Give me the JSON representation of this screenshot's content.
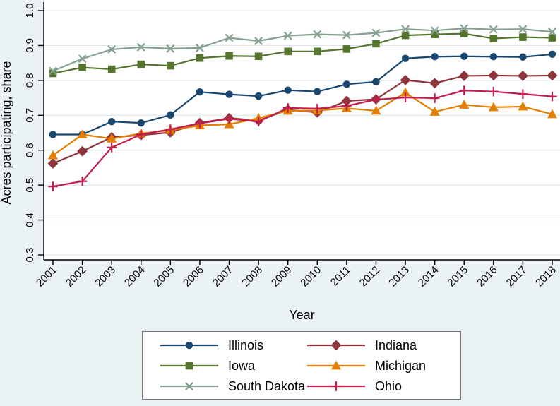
{
  "figure": {
    "background": "#eaf2f3",
    "plot_background": "#ffffff",
    "gridline_color": "#dde9ec",
    "axis_color": "#000000",
    "text_color": "#000000",
    "legend_border_color": "#767676"
  },
  "chart_data": {
    "type": "line",
    "title": "",
    "xlabel": "Year",
    "ylabel": "Acres participating, share",
    "x": [
      "2001",
      "2002",
      "2003",
      "2004",
      "2005",
      "2006",
      "2007",
      "2008",
      "2009",
      "2010",
      "2011",
      "2012",
      "2013",
      "2014",
      "2015",
      "2016",
      "2017",
      "2018"
    ],
    "ylim": [
      0.3,
      1.0
    ],
    "yticks": [
      "1.0",
      "0.9",
      "0.8",
      "0.7",
      "0.6",
      "0.5",
      "0.4",
      "0.3"
    ],
    "ytick_values": [
      1.0,
      0.9,
      0.8,
      0.7,
      0.6,
      0.5,
      0.4,
      0.3
    ],
    "grid": true,
    "legend_position": "bottom",
    "series": [
      {
        "name": "Illinois",
        "color": "#1a476f",
        "marker": "circle",
        "values": [
          0.645,
          0.645,
          0.682,
          0.678,
          0.701,
          0.767,
          0.76,
          0.755,
          0.772,
          0.768,
          0.789,
          0.796,
          0.863,
          0.868,
          0.869,
          0.868,
          0.867,
          0.875
        ]
      },
      {
        "name": "Iowa",
        "color": "#55752f",
        "marker": "square",
        "values": [
          0.82,
          0.837,
          0.832,
          0.846,
          0.842,
          0.864,
          0.87,
          0.869,
          0.883,
          0.883,
          0.89,
          0.905,
          0.929,
          0.932,
          0.934,
          0.92,
          0.924,
          0.922
        ]
      },
      {
        "name": "South Dakota",
        "color": "#85a08e",
        "marker": "x",
        "values": [
          0.827,
          0.862,
          0.889,
          0.895,
          0.891,
          0.893,
          0.922,
          0.913,
          0.928,
          0.932,
          0.93,
          0.936,
          0.947,
          0.943,
          0.949,
          0.946,
          0.947,
          0.939
        ]
      },
      {
        "name": "Indiana",
        "color": "#90353b",
        "marker": "diamond",
        "values": [
          0.562,
          0.597,
          0.637,
          0.643,
          0.651,
          0.678,
          0.692,
          0.685,
          0.716,
          0.708,
          0.741,
          0.746,
          0.801,
          0.792,
          0.813,
          0.814,
          0.813,
          0.814
        ]
      },
      {
        "name": "Michigan",
        "color": "#e37e00",
        "marker": "triangle",
        "values": [
          0.585,
          0.645,
          0.633,
          0.648,
          0.657,
          0.671,
          0.674,
          0.692,
          0.713,
          0.714,
          0.72,
          0.713,
          0.765,
          0.71,
          0.73,
          0.723,
          0.725,
          0.703
        ]
      },
      {
        "name": "Ohio",
        "color": "#c21d4c",
        "marker": "plus",
        "values": [
          0.496,
          0.511,
          0.608,
          0.645,
          0.66,
          0.677,
          0.69,
          0.682,
          0.721,
          0.719,
          0.727,
          0.745,
          0.751,
          0.749,
          0.771,
          0.768,
          0.761,
          0.754
        ]
      }
    ]
  }
}
